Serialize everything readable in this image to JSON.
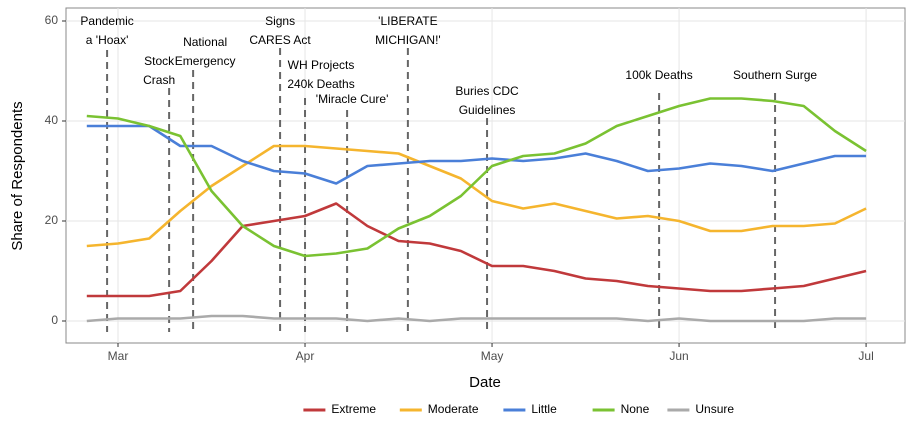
{
  "chart_data": {
    "type": "line",
    "xlabel": "Date",
    "ylabel": "Share of Respondents",
    "categories": [
      null,
      "Mar",
      null,
      null,
      null,
      null,
      null,
      "Apr",
      null,
      null,
      null,
      null,
      null,
      "May",
      null,
      null,
      null,
      null,
      null,
      "Jun",
      null,
      null,
      null,
      null,
      null,
      "Jul"
    ],
    "series": [
      {
        "name": "Extreme",
        "color": "#c0393b",
        "values": [
          5,
          5,
          5,
          6,
          12,
          19,
          20,
          21,
          23.5,
          19,
          16,
          15.5,
          14,
          11,
          11,
          10,
          8.5,
          8,
          7,
          6.5,
          6,
          6,
          6.5,
          7,
          8.5,
          10
        ]
      },
      {
        "name": "Moderate",
        "color": "#f5b52e",
        "values": [
          15,
          15.5,
          16.5,
          22,
          27,
          31,
          35,
          35,
          34.5,
          34,
          33.5,
          31,
          28.5,
          24,
          22.5,
          23.5,
          22,
          20.5,
          21,
          20,
          18,
          18,
          19,
          19,
          19.5,
          22.5
        ]
      },
      {
        "name": "Little",
        "color": "#4a7fd8",
        "values": [
          39,
          39,
          39,
          35,
          35,
          32,
          30,
          29.5,
          27.5,
          31,
          31.5,
          32,
          32,
          32.5,
          32,
          32.5,
          33.5,
          32,
          30,
          30.5,
          31.5,
          31,
          30,
          31.5,
          33,
          33
        ]
      },
      {
        "name": "None",
        "color": "#7ac232",
        "values": [
          41,
          40.5,
          39,
          37,
          26,
          19,
          15,
          13,
          13.5,
          14.5,
          18.5,
          21,
          25,
          31,
          33,
          33.5,
          35.5,
          39,
          41,
          43,
          44.5,
          44.5,
          44,
          43,
          38,
          34
        ]
      },
      {
        "name": "Unsure",
        "color": "#aaaaaa",
        "values": [
          0,
          0.5,
          0.5,
          0.5,
          1,
          1,
          0.5,
          0.5,
          0.5,
          0,
          0.5,
          0,
          0.5,
          0.5,
          0.5,
          0.5,
          0.5,
          0.5,
          0,
          0.5,
          0,
          0,
          0,
          0,
          0.5,
          0.5
        ]
      }
    ],
    "ylim": [
      -4.4,
      62.6
    ],
    "yticks": [
      0,
      20,
      40,
      60
    ],
    "grid": true,
    "legend": "bottom",
    "annotations": [
      {
        "label": [
          "Pandemic",
          "a 'Hoax'"
        ],
        "x": 0.65
      },
      {
        "label": [
          "Stock",
          "Crash"
        ],
        "x": 2.64
      },
      {
        "label": [
          "National",
          "Emergency"
        ],
        "x": 3.41
      },
      {
        "label": [
          "Signs",
          "CARES Act"
        ],
        "x": 6.2
      },
      {
        "label": [
          "WH Projects",
          "240k Deaths"
        ],
        "x": 7.0
      },
      {
        "label": [
          "'Miracle Cure'"
        ],
        "x": 8.35
      },
      {
        "label": [
          "'LIBERATE",
          "MICHIGAN!'"
        ],
        "x": 10.3
      },
      {
        "label": [
          "Buries CDC",
          "Guidelines"
        ],
        "x": 12.84
      },
      {
        "label": [
          "100k Deaths"
        ],
        "x": 18.36
      },
      {
        "label": [
          "Southern Surge"
        ],
        "x": 22.08
      }
    ]
  }
}
